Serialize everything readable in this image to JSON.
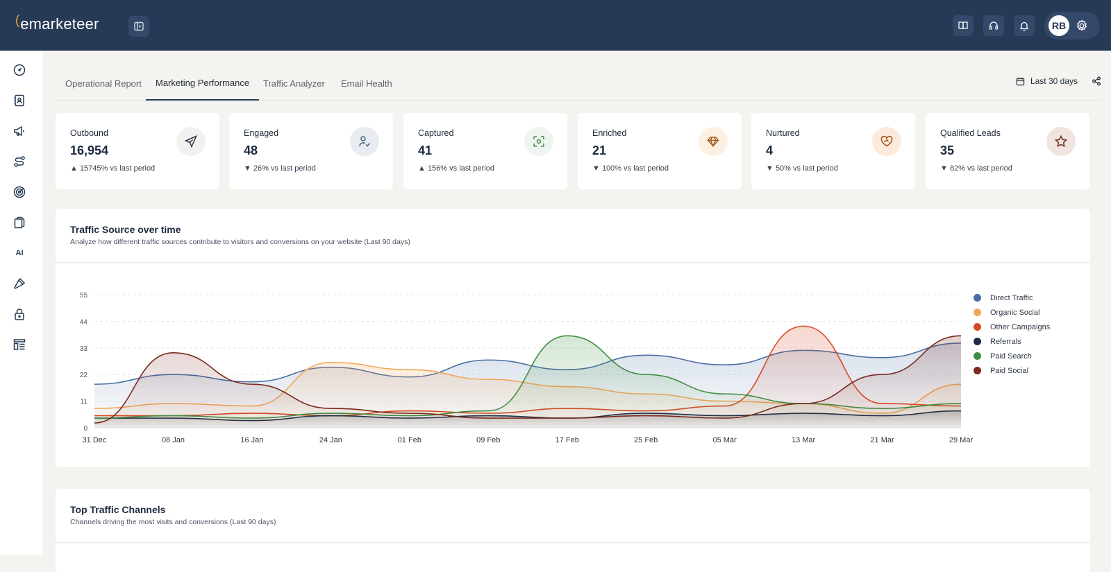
{
  "app": {
    "logo_mark": "(",
    "logo_text": "emarketeer",
    "user_initials": "RB"
  },
  "header_icons": [
    "book-icon",
    "headset-icon",
    "bell-icon",
    "gear-icon"
  ],
  "sidebar": {
    "items": [
      "dashboard-icon",
      "contacts-icon",
      "megaphone-icon",
      "routes-icon",
      "target-icon",
      "files-icon",
      "AI",
      "tools-icon",
      "lock-icon",
      "layout-icon"
    ]
  },
  "tabs": [
    {
      "label": "Operational Report",
      "active": false
    },
    {
      "label": "Marketing Performance",
      "active": true
    },
    {
      "label": "Traffic Analyzer",
      "active": false
    },
    {
      "label": "Email Health",
      "active": false
    }
  ],
  "date_range": "Last 30 days",
  "kpis": [
    {
      "label": "Outbound",
      "value": "16,954",
      "delta": "▲ 15745% vs last period",
      "icon": "send-icon",
      "badge_bg": "#f1f1ef",
      "icon_color": "#2f3845"
    },
    {
      "label": "Engaged",
      "value": "48",
      "delta": "▼ 26% vs last period",
      "icon": "user-check-icon",
      "badge_bg": "#e8ebf0",
      "icon_color": "#4a6383"
    },
    {
      "label": "Captured",
      "value": "41",
      "delta": "▲ 156% vs last period",
      "icon": "scan-icon",
      "badge_bg": "#eef5ee",
      "icon_color": "#3b8a45"
    },
    {
      "label": "Enriched",
      "value": "21",
      "delta": "▼ 100% vs last period",
      "icon": "diamond-icon",
      "badge_bg": "#fdf0e2",
      "icon_color": "#a65b1b"
    },
    {
      "label": "Nurtured",
      "value": "4",
      "delta": "▼ 50% vs last period",
      "icon": "heart-handshake-icon",
      "badge_bg": "#fcebdc",
      "icon_color": "#9a4c15"
    },
    {
      "label": "Qualified Leads",
      "value": "35",
      "delta": "▼ 82% vs last period",
      "icon": "star-icon",
      "badge_bg": "#f1e4e0",
      "icon_color": "#6e2a20"
    }
  ],
  "traffic_card": {
    "title": "Traffic Source over time",
    "subtitle": "Analyze how different traffic sources contribute to visitors and conversions on your website (Last 90 days)"
  },
  "channels_card": {
    "title": "Top Traffic Channels",
    "subtitle": "Channels driving the most visits and conversions (Last 90 days)"
  },
  "chart_data": {
    "type": "area",
    "x": [
      "31 Dec",
      "08 Jan",
      "16 Jan",
      "24 Jan",
      "01 Feb",
      "09 Feb",
      "17 Feb",
      "25 Feb",
      "05 Mar",
      "13 Mar",
      "21 Mar",
      "29 Mar"
    ],
    "yticks": [
      0,
      11,
      22,
      33,
      44,
      55
    ],
    "ylim": [
      0,
      55
    ],
    "grid": true,
    "legend": "right",
    "series": [
      {
        "name": "Direct Traffic",
        "color": "#4a6fa5",
        "values": [
          18,
          22,
          19,
          25,
          21,
          28,
          24,
          30,
          26,
          32,
          29,
          35
        ]
      },
      {
        "name": "Organic Social",
        "color": "#f2a65a",
        "values": [
          8,
          10,
          9,
          27,
          24,
          20,
          17,
          14,
          11,
          10,
          6,
          18
        ]
      },
      {
        "name": "Other Campaigns",
        "color": "#d84a25",
        "values": [
          5,
          5,
          6,
          5,
          7,
          6,
          8,
          7,
          9,
          42,
          10,
          9
        ]
      },
      {
        "name": "Referrals",
        "color": "#1e2c45",
        "values": [
          4,
          4,
          3,
          5,
          4,
          5,
          4,
          6,
          5,
          6,
          5,
          7
        ]
      },
      {
        "name": "Paid Search",
        "color": "#3f8f43",
        "values": [
          4,
          5,
          4,
          6,
          5,
          7,
          38,
          22,
          14,
          10,
          8,
          10
        ]
      },
      {
        "name": "Paid Social",
        "color": "#7a2a1f",
        "values": [
          2,
          31,
          18,
          8,
          6,
          4,
          4,
          5,
          4,
          10,
          22,
          38
        ]
      }
    ]
  }
}
